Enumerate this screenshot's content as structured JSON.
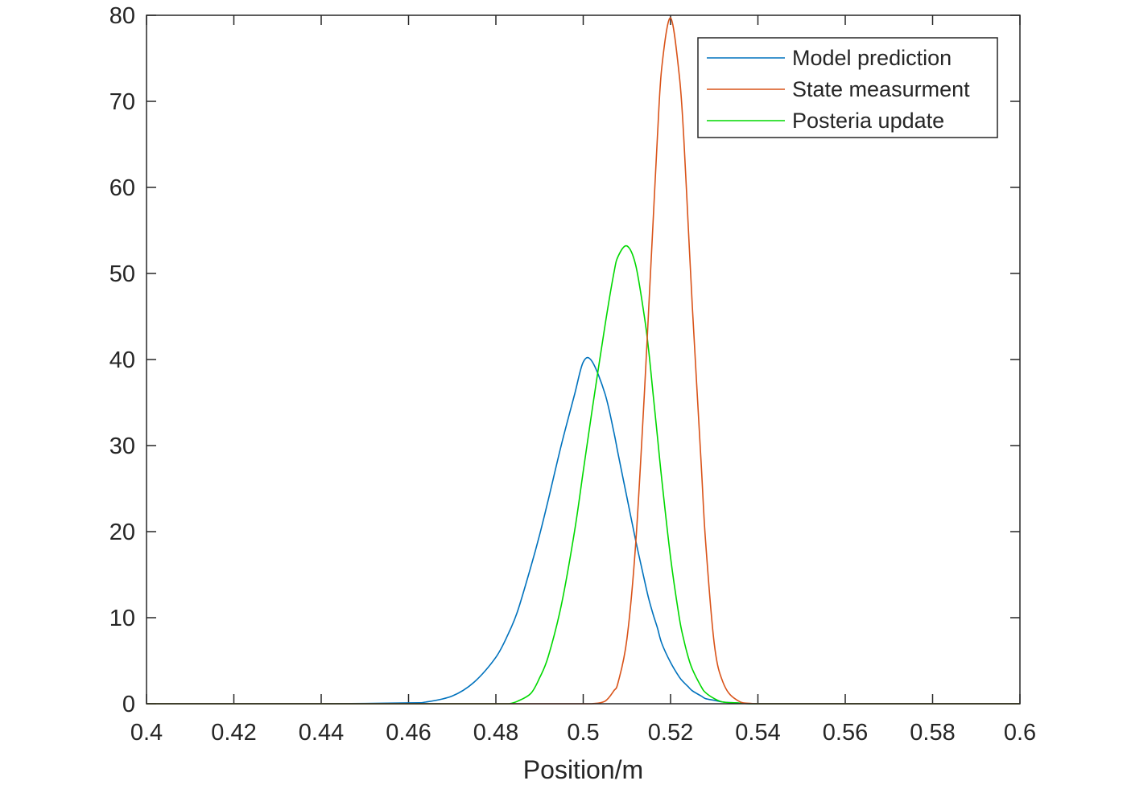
{
  "chart_data": {
    "type": "line",
    "title": "",
    "xlabel": "Position/m",
    "ylabel": "",
    "xlim": [
      0.4,
      0.6
    ],
    "ylim": [
      0,
      80
    ],
    "grid": false,
    "legend_position": "top-right",
    "x_ticks": [
      "0.4",
      "0.42",
      "0.44",
      "0.46",
      "0.48",
      "0.5",
      "0.52",
      "0.54",
      "0.56",
      "0.58",
      "0.6"
    ],
    "y_ticks": [
      "0",
      "10",
      "20",
      "30",
      "40",
      "50",
      "60",
      "70",
      "80"
    ],
    "x": [
      0.4,
      0.44,
      0.46,
      0.464,
      0.47,
      0.475,
      0.48,
      0.483,
      0.485,
      0.488,
      0.49,
      0.492,
      0.495,
      0.498,
      0.5,
      0.502,
      0.505,
      0.507,
      0.508,
      0.51,
      0.512,
      0.514,
      0.515,
      0.516,
      0.517,
      0.518,
      0.52,
      0.522,
      0.523,
      0.524,
      0.525,
      0.527,
      0.528,
      0.53,
      0.532,
      0.535,
      0.54,
      0.56,
      0.6
    ],
    "series": [
      {
        "name": "Model prediction",
        "color": "#0072BD",
        "values": [
          0,
          0,
          0.1,
          0.2,
          0.9,
          2.5,
          5.4,
          8.3,
          10.8,
          15.9,
          19.6,
          23.7,
          30.1,
          35.9,
          39.7,
          39.8,
          36.0,
          31.6,
          29.0,
          24.0,
          19.0,
          14.4,
          12.2,
          10.4,
          8.8,
          7.0,
          4.8,
          3.1,
          2.5,
          2.0,
          1.5,
          0.9,
          0.6,
          0.4,
          0.2,
          0.1,
          0,
          0,
          0
        ]
      },
      {
        "name": "State measurment",
        "color": "#D95319",
        "values": [
          0,
          0,
          0,
          0,
          0,
          0,
          0,
          0,
          0,
          0,
          0,
          0,
          0,
          0,
          0,
          0,
          0.3,
          1.5,
          2.5,
          7.5,
          18.5,
          36.0,
          46.0,
          56.0,
          66.0,
          74.0,
          79.7,
          73.0,
          66.0,
          56.0,
          46.0,
          28.0,
          19.0,
          7.0,
          2.5,
          0.5,
          0,
          0,
          0
        ]
      },
      {
        "name": "Posteria update",
        "color": "#00D800",
        "values": [
          0,
          0,
          0,
          0,
          0,
          0,
          0,
          0,
          0.3,
          1.2,
          3.0,
          5.5,
          11.5,
          20.0,
          27.0,
          34.0,
          44.0,
          50.0,
          52.0,
          53.2,
          51.0,
          45.0,
          41.0,
          36.0,
          31.0,
          26.0,
          17.0,
          10.0,
          7.5,
          5.5,
          4.0,
          2.0,
          1.3,
          0.6,
          0.2,
          0.1,
          0,
          0,
          0
        ]
      }
    ]
  }
}
